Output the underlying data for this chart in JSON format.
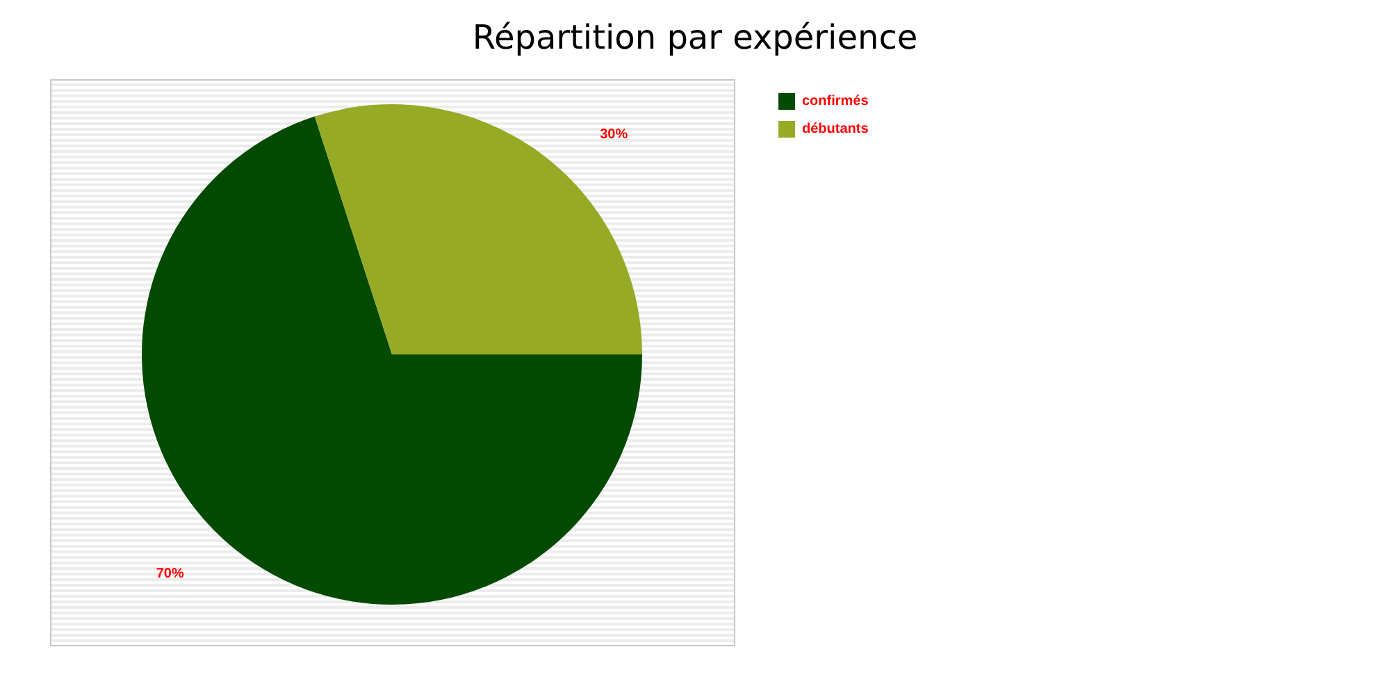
{
  "chart_data": {
    "type": "pie",
    "title": "Répartition par expérience",
    "categories": [
      "confirmés",
      "débutants"
    ],
    "values": [
      70,
      30
    ],
    "colors": [
      "#024a00",
      "#96aa26"
    ],
    "value_labels": [
      "70%",
      "30%"
    ],
    "legend": "top right"
  }
}
